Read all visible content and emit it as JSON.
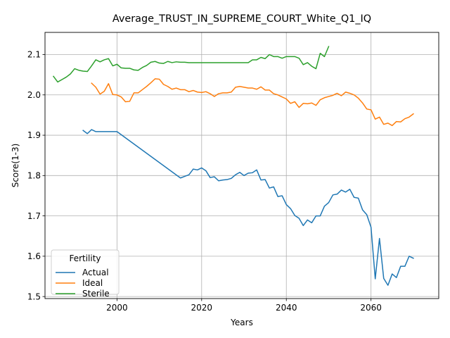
{
  "chart_data": {
    "type": "line",
    "title": "Average_TRUST_IN_SUPREME_COURT_White_Q1_IQ",
    "xlabel": "Years",
    "ylabel": "Score(1-3)",
    "xlim": [
      1983,
      2076
    ],
    "ylim": [
      1.495,
      2.155
    ],
    "xticks": [
      2000,
      2020,
      2040,
      2060
    ],
    "yticks": [
      1.5,
      1.6,
      1.7,
      1.8,
      1.9,
      2.0,
      2.1
    ],
    "xtick_labels": [
      "2000",
      "2020",
      "2040",
      "2060"
    ],
    "ytick_labels": [
      "1.5",
      "1.6",
      "1.7",
      "1.8",
      "1.9",
      "2.0",
      "2.1"
    ],
    "grid": true,
    "legend": {
      "title": "Fertility",
      "placement": "lower-left"
    },
    "series": [
      {
        "name": "Actual",
        "color": "#1f77b4",
        "x": [
          1992,
          1993,
          1994,
          1995,
          1996,
          1997,
          1998,
          1999,
          2000,
          2015,
          2016,
          2017,
          2018,
          2019,
          2020,
          2021,
          2022,
          2023,
          2024,
          2025,
          2026,
          2027,
          2028,
          2029,
          2030,
          2031,
          2032,
          2033,
          2034,
          2035,
          2036,
          2037,
          2038,
          2039,
          2040,
          2041,
          2042,
          2043,
          2044,
          2045,
          2046,
          2047,
          2048,
          2049,
          2050,
          2051,
          2052,
          2053,
          2054,
          2055,
          2056,
          2057,
          2058,
          2059,
          2060,
          2061,
          2062,
          2063,
          2064,
          2065,
          2066,
          2067,
          2068,
          2069,
          2070
        ],
        "y": [
          1.912,
          1.904,
          1.914,
          1.909,
          1.909,
          1.909,
          1.909,
          1.909,
          1.909,
          1.794,
          1.798,
          1.802,
          1.816,
          1.814,
          1.819,
          1.812,
          1.795,
          1.797,
          1.787,
          1.789,
          1.79,
          1.793,
          1.802,
          1.808,
          1.8,
          1.806,
          1.807,
          1.814,
          1.789,
          1.79,
          1.769,
          1.772,
          1.748,
          1.75,
          1.728,
          1.718,
          1.701,
          1.694,
          1.676,
          1.69,
          1.683,
          1.7,
          1.7,
          1.724,
          1.733,
          1.752,
          1.754,
          1.764,
          1.759,
          1.766,
          1.746,
          1.744,
          1.715,
          1.703,
          1.672,
          1.544,
          1.644,
          1.545,
          1.528,
          1.556,
          1.547,
          1.575,
          1.575,
          1.6,
          1.595
        ]
      },
      {
        "name": "Ideal",
        "color": "#ff7f0e",
        "x": [
          1994,
          1995,
          1996,
          1997,
          1998,
          1999,
          2000,
          2001,
          2002,
          2003,
          2004,
          2005,
          2006,
          2007,
          2008,
          2009,
          2010,
          2011,
          2012,
          2013,
          2014,
          2015,
          2016,
          2017,
          2018,
          2019,
          2020,
          2021,
          2022,
          2023,
          2024,
          2025,
          2026,
          2027,
          2028,
          2029,
          2030,
          2031,
          2032,
          2033,
          2034,
          2035,
          2036,
          2037,
          2038,
          2039,
          2040,
          2041,
          2042,
          2043,
          2044,
          2045,
          2046,
          2047,
          2048,
          2049,
          2050,
          2051,
          2052,
          2053,
          2054,
          2055,
          2056,
          2057,
          2058,
          2059,
          2060,
          2061,
          2062,
          2063,
          2064,
          2065,
          2066,
          2067,
          2068,
          2069,
          2070
        ],
        "y": [
          2.029,
          2.019,
          2.002,
          2.009,
          2.028,
          2.001,
          2.0,
          1.995,
          1.983,
          1.984,
          2.005,
          2.005,
          2.013,
          2.021,
          2.03,
          2.04,
          2.039,
          2.026,
          2.021,
          2.014,
          2.017,
          2.013,
          2.013,
          2.008,
          2.011,
          2.007,
          2.006,
          2.008,
          2.003,
          1.996,
          2.003,
          2.005,
          2.005,
          2.007,
          2.019,
          2.021,
          2.019,
          2.017,
          2.017,
          2.014,
          2.02,
          2.012,
          2.012,
          2.003,
          2.0,
          1.995,
          1.99,
          1.979,
          1.983,
          1.969,
          1.979,
          1.978,
          1.98,
          1.974,
          1.988,
          1.993,
          1.996,
          1.999,
          2.004,
          1.998,
          2.007,
          2.004,
          2.0,
          1.992,
          1.98,
          1.965,
          1.963,
          1.94,
          1.945,
          1.927,
          1.93,
          1.924,
          1.934,
          1.933,
          1.941,
          1.945,
          1.953
        ]
      },
      {
        "name": "Sterile",
        "color": "#2ca02c",
        "x": [
          1985,
          1986,
          1987,
          1988,
          1989,
          1990,
          1991,
          1992,
          1993,
          1994,
          1995,
          1996,
          1997,
          1998,
          1999,
          2000,
          2001,
          2002,
          2003,
          2004,
          2005,
          2006,
          2007,
          2008,
          2009,
          2010,
          2011,
          2012,
          2013,
          2014,
          2015,
          2016,
          2017,
          2018,
          2019,
          2020,
          2021,
          2022,
          2023,
          2024,
          2025,
          2026,
          2027,
          2028,
          2029,
          2030,
          2031,
          2032,
          2033,
          2034,
          2035,
          2036,
          2037,
          2038,
          2039,
          2040,
          2041,
          2042,
          2043,
          2044,
          2045,
          2046,
          2047,
          2048,
          2049,
          2050
        ],
        "y": [
          2.046,
          2.032,
          2.038,
          2.044,
          2.052,
          2.065,
          2.061,
          2.059,
          2.058,
          2.072,
          2.087,
          2.082,
          2.087,
          2.09,
          2.072,
          2.076,
          2.067,
          2.066,
          2.066,
          2.062,
          2.061,
          2.068,
          2.073,
          2.081,
          2.083,
          2.079,
          2.078,
          2.083,
          2.08,
          2.082,
          2.081,
          2.081,
          2.08,
          2.08,
          2.08,
          2.08,
          2.08,
          2.08,
          2.08,
          2.08,
          2.08,
          2.08,
          2.08,
          2.08,
          2.08,
          2.08,
          2.08,
          2.087,
          2.087,
          2.093,
          2.09,
          2.1,
          2.095,
          2.095,
          2.091,
          2.095,
          2.095,
          2.095,
          2.091,
          2.075,
          2.08,
          2.071,
          2.065,
          2.103,
          2.095,
          2.12
        ]
      }
    ]
  }
}
